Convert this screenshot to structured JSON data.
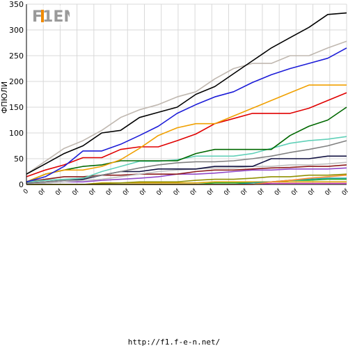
{
  "footer_url": "http://f1.f-e-n.net/",
  "logo": {
    "name": "f1-fen-logo",
    "text": "F1EN"
  },
  "chart_data": {
    "type": "line",
    "title": "",
    "xlabel": "",
    "ylabel": "ФПЮЛИ",
    "ylim": [
      0,
      350
    ],
    "yticks": [
      0,
      50,
      100,
      150,
      200,
      250,
      300,
      350
    ],
    "grid": true,
    "x_tick_labels": [
      "0",
      "0f",
      "0f",
      "0f",
      "0f",
      "0f",
      "0f",
      "0f",
      "0f",
      "0f",
      "0f",
      "0f",
      "0f",
      "0f",
      "0f",
      "0f",
      "0f",
      "0f",
      "0f",
      "0f"
    ],
    "series": [
      {
        "color": "#000000",
        "values": [
          20,
          40,
          60,
          75,
          100,
          105,
          130,
          140,
          150,
          175,
          190,
          215,
          240,
          265,
          285,
          305,
          330,
          333
        ]
      },
      {
        "color": "#c0b8b0",
        "values": [
          20,
          45,
          70,
          85,
          105,
          130,
          145,
          155,
          170,
          180,
          205,
          225,
          235,
          235,
          250,
          250,
          265,
          278
        ]
      },
      {
        "color": "#1c1cd8",
        "values": [
          5,
          15,
          35,
          65,
          65,
          78,
          95,
          113,
          138,
          155,
          170,
          180,
          198,
          213,
          225,
          235,
          245,
          265
        ]
      },
      {
        "color": "#f0a000",
        "values": [
          5,
          20,
          28,
          28,
          35,
          48,
          70,
          95,
          110,
          118,
          118,
          133,
          148,
          163,
          178,
          193,
          193,
          193
        ]
      },
      {
        "color": "#e00000",
        "values": [
          15,
          28,
          38,
          52,
          52,
          68,
          73,
          73,
          85,
          98,
          118,
          128,
          138,
          138,
          138,
          148,
          163,
          178
        ]
      },
      {
        "color": "#006800",
        "values": [
          5,
          20,
          28,
          35,
          38,
          46,
          46,
          46,
          46,
          60,
          68,
          68,
          68,
          68,
          95,
          113,
          125,
          150
        ]
      },
      {
        "color": "#60d0b8",
        "values": [
          5,
          8,
          10,
          12,
          25,
          35,
          45,
          45,
          48,
          55,
          55,
          55,
          60,
          70,
          80,
          85,
          88,
          93
        ]
      },
      {
        "color": "#808080",
        "values": [
          3,
          5,
          8,
          12,
          18,
          25,
          32,
          38,
          42,
          44,
          44,
          46,
          50,
          55,
          62,
          68,
          75,
          85
        ]
      },
      {
        "color": "#101040",
        "values": [
          3,
          5,
          8,
          10,
          18,
          25,
          25,
          30,
          30,
          30,
          35,
          35,
          35,
          50,
          50,
          50,
          55,
          55
        ]
      },
      {
        "color": "#c0c0c0",
        "values": [
          2,
          3,
          5,
          8,
          10,
          15,
          20,
          25,
          28,
          30,
          32,
          32,
          35,
          35,
          38,
          38,
          40,
          43
        ]
      },
      {
        "color": "#8b1a1a",
        "values": [
          5,
          10,
          15,
          15,
          18,
          18,
          20,
          20,
          20,
          25,
          28,
          28,
          30,
          32,
          33,
          35,
          35,
          38
        ]
      },
      {
        "color": "#9048c8",
        "values": [
          2,
          3,
          5,
          5,
          8,
          10,
          12,
          15,
          20,
          20,
          22,
          25,
          28,
          28,
          30,
          30,
          30,
          32
        ]
      },
      {
        "color": "#909000",
        "values": [
          0,
          0,
          0,
          0,
          2,
          3,
          5,
          5,
          5,
          8,
          10,
          10,
          12,
          15,
          15,
          18,
          18,
          20
        ]
      },
      {
        "color": "#ff8c30",
        "values": [
          0,
          0,
          0,
          0,
          0,
          0,
          0,
          0,
          0,
          0,
          0,
          0,
          0,
          5,
          8,
          12,
          15,
          18
        ]
      },
      {
        "color": "#20a0a0",
        "values": [
          0,
          0,
          0,
          0,
          0,
          0,
          0,
          0,
          0,
          0,
          0,
          0,
          3,
          5,
          8,
          10,
          12,
          12
        ]
      },
      {
        "color": "#30b030",
        "values": [
          0,
          0,
          0,
          0,
          0,
          0,
          0,
          0,
          0,
          0,
          3,
          3,
          3,
          5,
          8,
          8,
          10,
          10
        ]
      },
      {
        "color": "#d8a000",
        "values": [
          0,
          0,
          0,
          0,
          3,
          3,
          3,
          3,
          3,
          3,
          5,
          5,
          5,
          5,
          5,
          5,
          5,
          5
        ]
      },
      {
        "color": "#d040c0",
        "values": [
          0,
          0,
          0,
          0,
          0,
          0,
          0,
          0,
          0,
          0,
          0,
          0,
          0,
          2,
          2,
          2,
          2,
          2
        ]
      }
    ]
  }
}
